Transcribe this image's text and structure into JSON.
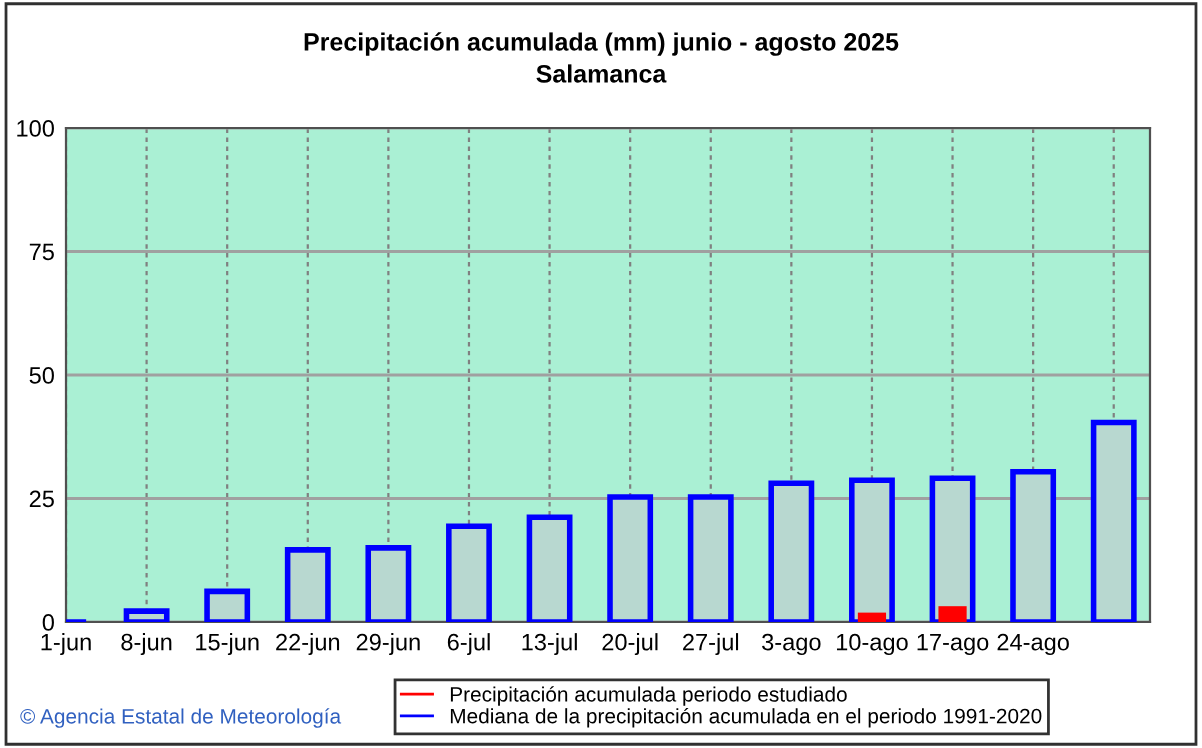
{
  "chart_data": {
    "type": "bar",
    "title": "Precipitación acumulada (mm) junio - agosto 2025",
    "subtitle": "Salamanca",
    "categories": [
      "1-jun",
      "8-jun",
      "15-jun",
      "22-jun",
      "29-jun",
      "6-jul",
      "13-jul",
      "20-jul",
      "27-jul",
      "3-ago",
      "10-ago",
      "17-ago",
      "24-ago",
      null
    ],
    "series": [
      {
        "name": "Mediana de la precipitación acumulada en el periodo 1991-2020",
        "color": "#0000ff",
        "values": [
          0,
          2.2,
          6.2,
          14.6,
          15.0,
          19.4,
          21.2,
          25.3,
          25.3,
          28.1,
          28.7,
          29.1,
          30.4,
          40.4
        ]
      },
      {
        "name": "Precipitación acumulada periodo estudiado",
        "color": "#ff0000",
        "values": [
          0,
          0,
          0,
          0,
          0,
          0,
          0,
          0,
          0,
          0,
          1.9,
          3.2,
          null,
          null
        ]
      }
    ],
    "ylim": [
      0,
      100
    ],
    "yticks": [
      0,
      25,
      50,
      75,
      100
    ],
    "grid": true,
    "legend": "bottom",
    "annotations": [
      "© Agencia Estatal de Meteorología"
    ]
  }
}
